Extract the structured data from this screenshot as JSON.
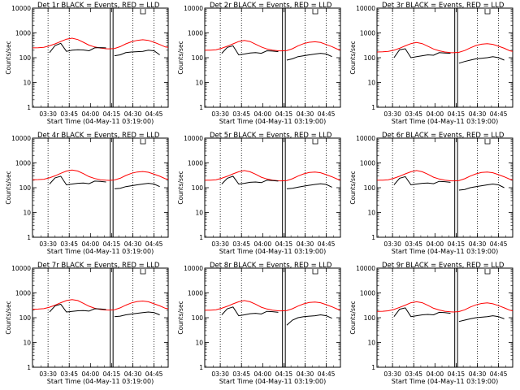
{
  "figure": {
    "common": {
      "xlabel": "Start Time (04-May-11 03:19:00)",
      "ylabel": "Counts/sec",
      "yscale": "log",
      "ylim": [
        1,
        10000
      ],
      "ytick_labels": [
        "1",
        "10",
        "100",
        "1000",
        "10000"
      ],
      "xtick_labels": [
        "03:30",
        "03:45",
        "04:00",
        "04:15",
        "04:30",
        "04:45"
      ],
      "xlim_minutes_from_start": [
        0,
        96
      ],
      "dotted_lines_at": [
        "03:30",
        "03:45",
        "04:30",
        "04:45"
      ],
      "solid_lines_at": [
        "04:14",
        "04:16"
      ],
      "colors": {
        "events": "#000000",
        "lld": "#ff0000",
        "axes": "#000000"
      }
    }
  },
  "chart_data": [
    {
      "type": "line",
      "title": "Det 1r BLACK = Events, RED = LLD",
      "x_minutes": [
        0,
        4,
        8,
        12,
        16,
        20,
        24,
        28,
        32,
        36,
        40,
        44,
        48,
        52,
        54,
        58,
        62,
        66,
        70,
        74,
        78,
        82,
        86,
        90,
        94,
        96
      ],
      "series": [
        {
          "name": "LLD",
          "color": "#ff0000",
          "values": [
            250,
            252,
            262,
            300,
            360,
            450,
            560,
            610,
            540,
            420,
            320,
            270,
            245,
            230,
            228,
            235,
            280,
            360,
            440,
            500,
            530,
            500,
            420,
            340,
            270,
            260
          ]
        },
        {
          "name": "Events",
          "color": "#000000",
          "values": [
            null,
            null,
            null,
            160,
            310,
            380,
            180,
            200,
            210,
            205,
            190,
            250,
            255,
            250,
            null,
            120,
            130,
            160,
            170,
            175,
            180,
            200,
            190,
            130,
            null,
            null
          ]
        }
      ]
    },
    {
      "type": "line",
      "title": "Det 2r BLACK = Events, RED = LLD",
      "x_minutes": [
        0,
        4,
        8,
        12,
        16,
        20,
        24,
        28,
        32,
        36,
        40,
        44,
        48,
        52,
        54,
        58,
        62,
        66,
        70,
        74,
        78,
        82,
        86,
        90,
        94,
        96
      ],
      "series": [
        {
          "name": "LLD",
          "color": "#ff0000",
          "values": [
            200,
            202,
            210,
            240,
            290,
            360,
            450,
            500,
            450,
            350,
            270,
            225,
            200,
            190,
            188,
            195,
            230,
            300,
            370,
            420,
            440,
            410,
            340,
            280,
            220,
            210
          ]
        },
        {
          "name": "Events",
          "color": "#000000",
          "values": [
            null,
            null,
            null,
            150,
            260,
            300,
            130,
            140,
            155,
            160,
            150,
            190,
            185,
            175,
            null,
            80,
            90,
            110,
            120,
            130,
            140,
            150,
            140,
            110,
            null,
            null
          ]
        }
      ]
    },
    {
      "type": "line",
      "title": "Det 3r BLACK = Events, RED = LLD",
      "x_minutes": [
        0,
        4,
        8,
        12,
        16,
        20,
        24,
        28,
        32,
        36,
        40,
        44,
        48,
        52,
        54,
        58,
        62,
        66,
        70,
        74,
        78,
        82,
        86,
        90,
        94,
        96
      ],
      "series": [
        {
          "name": "LLD",
          "color": "#ff0000",
          "values": [
            170,
            172,
            180,
            200,
            240,
            300,
            370,
            410,
            370,
            290,
            225,
            190,
            170,
            160,
            158,
            165,
            195,
            250,
            310,
            350,
            370,
            345,
            290,
            240,
            190,
            180
          ]
        },
        {
          "name": "Events",
          "color": "#000000",
          "values": [
            null,
            null,
            null,
            100,
            210,
            230,
            100,
            110,
            120,
            130,
            125,
            160,
            155,
            150,
            null,
            60,
            70,
            80,
            90,
            95,
            100,
            110,
            100,
            80,
            null,
            null
          ]
        }
      ]
    },
    {
      "type": "line",
      "title": "Det 4r BLACK = Events, RED = LLD",
      "x_minutes": [
        0,
        4,
        8,
        12,
        16,
        20,
        24,
        28,
        32,
        36,
        40,
        44,
        48,
        52,
        54,
        58,
        62,
        66,
        70,
        74,
        78,
        82,
        86,
        90,
        94,
        96
      ],
      "series": [
        {
          "name": "LLD",
          "color": "#ff0000",
          "values": [
            210,
            212,
            220,
            250,
            300,
            380,
            470,
            520,
            470,
            370,
            280,
            235,
            210,
            200,
            198,
            205,
            240,
            310,
            380,
            430,
            450,
            420,
            350,
            290,
            230,
            220
          ]
        },
        {
          "name": "Events",
          "color": "#000000",
          "values": [
            null,
            null,
            null,
            140,
            250,
            290,
            130,
            140,
            150,
            155,
            145,
            185,
            180,
            170,
            null,
            90,
            95,
            110,
            120,
            130,
            140,
            150,
            140,
            110,
            null,
            null
          ]
        }
      ]
    },
    {
      "type": "line",
      "title": "Det 5r BLACK = Events, RED = LLD",
      "x_minutes": [
        0,
        4,
        8,
        12,
        16,
        20,
        24,
        28,
        32,
        36,
        40,
        44,
        48,
        52,
        54,
        58,
        62,
        66,
        70,
        74,
        78,
        82,
        86,
        90,
        94,
        96
      ],
      "series": [
        {
          "name": "LLD",
          "color": "#ff0000",
          "values": [
            200,
            202,
            210,
            240,
            290,
            360,
            440,
            490,
            440,
            350,
            265,
            225,
            200,
            190,
            188,
            195,
            230,
            295,
            360,
            410,
            430,
            400,
            335,
            275,
            220,
            210
          ]
        },
        {
          "name": "Events",
          "color": "#000000",
          "values": [
            null,
            null,
            null,
            140,
            240,
            290,
            140,
            150,
            165,
            170,
            160,
            200,
            195,
            185,
            null,
            90,
            95,
            105,
            115,
            125,
            135,
            145,
            135,
            105,
            null,
            null
          ]
        }
      ]
    },
    {
      "type": "line",
      "title": "Det 6r BLACK = Events, RED = LLD",
      "x_minutes": [
        0,
        4,
        8,
        12,
        16,
        20,
        24,
        28,
        32,
        36,
        40,
        44,
        48,
        52,
        54,
        58,
        62,
        66,
        70,
        74,
        78,
        82,
        86,
        90,
        94,
        96
      ],
      "series": [
        {
          "name": "LLD",
          "color": "#ff0000",
          "values": [
            200,
            202,
            210,
            240,
            290,
            360,
            440,
            490,
            440,
            350,
            265,
            225,
            200,
            190,
            188,
            195,
            230,
            295,
            360,
            410,
            430,
            400,
            335,
            275,
            220,
            210
          ]
        },
        {
          "name": "Events",
          "color": "#000000",
          "values": [
            null,
            null,
            null,
            130,
            240,
            280,
            130,
            140,
            150,
            155,
            145,
            180,
            175,
            165,
            null,
            80,
            85,
            100,
            110,
            120,
            130,
            140,
            130,
            100,
            null,
            null
          ]
        }
      ]
    },
    {
      "type": "line",
      "title": "Det 7r BLACK = Events, RED = LLD",
      "x_minutes": [
        0,
        4,
        8,
        12,
        16,
        20,
        24,
        28,
        32,
        36,
        40,
        44,
        48,
        52,
        54,
        58,
        62,
        66,
        70,
        74,
        78,
        82,
        86,
        90,
        94,
        96
      ],
      "series": [
        {
          "name": "LLD",
          "color": "#ff0000",
          "values": [
            220,
            222,
            232,
            265,
            320,
            400,
            490,
            540,
            490,
            380,
            290,
            240,
            215,
            205,
            203,
            210,
            250,
            320,
            395,
            450,
            470,
            440,
            365,
            300,
            240,
            230
          ]
        },
        {
          "name": "Events",
          "color": "#000000",
          "values": [
            null,
            null,
            null,
            170,
            300,
            350,
            170,
            180,
            190,
            195,
            185,
            230,
            225,
            215,
            null,
            110,
            115,
            130,
            140,
            150,
            160,
            170,
            160,
            130,
            null,
            null
          ]
        }
      ]
    },
    {
      "type": "line",
      "title": "Det 8r BLACK = Events, RED = LLD",
      "x_minutes": [
        0,
        4,
        8,
        12,
        16,
        20,
        24,
        28,
        32,
        36,
        40,
        44,
        48,
        52,
        54,
        58,
        62,
        66,
        70,
        74,
        78,
        82,
        86,
        90,
        94,
        96
      ],
      "series": [
        {
          "name": "LLD",
          "color": "#ff0000",
          "values": [
            200,
            202,
            210,
            240,
            290,
            360,
            440,
            490,
            440,
            350,
            265,
            225,
            200,
            190,
            188,
            195,
            230,
            295,
            360,
            410,
            430,
            400,
            335,
            275,
            220,
            210
          ]
        },
        {
          "name": "Events",
          "color": "#000000",
          "values": [
            null,
            null,
            null,
            130,
            230,
            270,
            120,
            130,
            145,
            150,
            140,
            180,
            175,
            165,
            null,
            50,
            80,
            100,
            110,
            115,
            120,
            130,
            120,
            95,
            null,
            null
          ]
        }
      ]
    },
    {
      "type": "line",
      "title": "Det 9r BLACK = Events, RED = LLD",
      "x_minutes": [
        0,
        4,
        8,
        12,
        16,
        20,
        24,
        28,
        32,
        36,
        40,
        44,
        48,
        52,
        54,
        58,
        62,
        66,
        70,
        74,
        78,
        82,
        86,
        90,
        94,
        96
      ],
      "series": [
        {
          "name": "LLD",
          "color": "#ff0000",
          "values": [
            180,
            182,
            190,
            215,
            260,
            320,
            400,
            440,
            400,
            315,
            240,
            205,
            182,
            172,
            170,
            176,
            208,
            268,
            330,
            375,
            395,
            365,
            305,
            250,
            200,
            190
          ]
        },
        {
          "name": "Events",
          "color": "#000000",
          "values": [
            null,
            null,
            null,
            110,
            220,
            250,
            110,
            120,
            130,
            135,
            130,
            165,
            160,
            150,
            null,
            70,
            80,
            90,
            100,
            105,
            110,
            120,
            110,
            90,
            null,
            null
          ]
        }
      ]
    }
  ]
}
